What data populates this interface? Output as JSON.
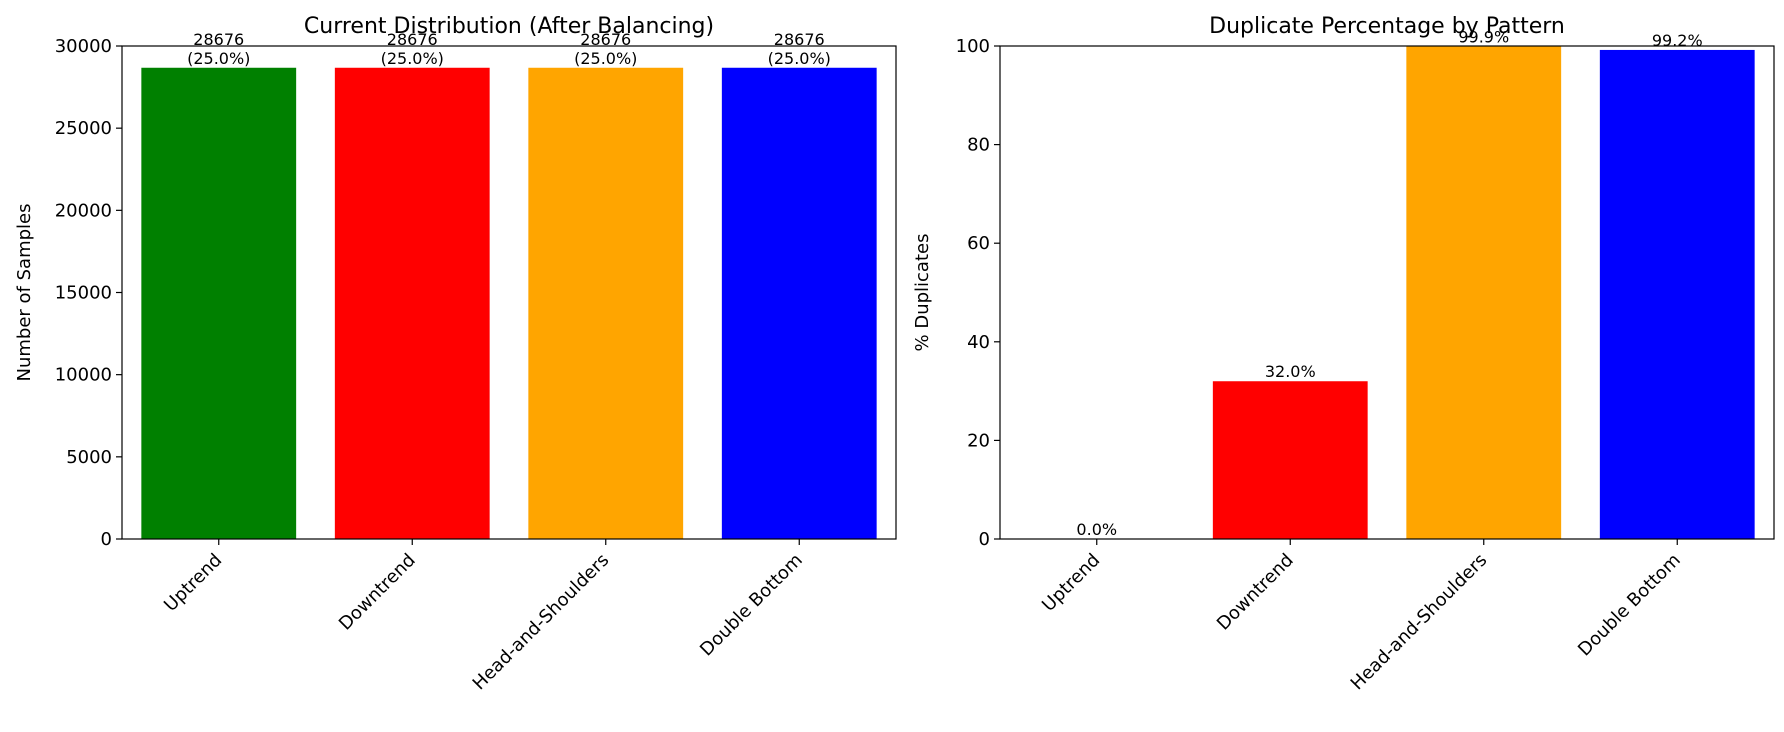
{
  "chart_data": [
    {
      "type": "bar",
      "title": "Current Distribution (After Balancing)",
      "xlabel": "",
      "ylabel": "Number of Samples",
      "categories": [
        "Uptrend",
        "Downtrend",
        "Head-and-Shoulders",
        "Double Bottom"
      ],
      "values": [
        28676,
        28676,
        28676,
        28676
      ],
      "bar_labels": [
        [
          "28676",
          "(25.0%)"
        ],
        [
          "28676",
          "(25.0%)"
        ],
        [
          "28676",
          "(25.0%)"
        ],
        [
          "28676",
          "(25.0%)"
        ]
      ],
      "colors": [
        "#008000",
        "#ff0000",
        "#ffa500",
        "#0000ff"
      ],
      "ylim": [
        0,
        30000
      ],
      "yticks": [
        0,
        5000,
        10000,
        15000,
        20000,
        25000,
        30000
      ],
      "grid": false
    },
    {
      "type": "bar",
      "title": "Duplicate Percentage by Pattern",
      "xlabel": "",
      "ylabel": "% Duplicates",
      "categories": [
        "Uptrend",
        "Downtrend",
        "Head-and-Shoulders",
        "Double Bottom"
      ],
      "values": [
        0.0,
        32.0,
        99.9,
        99.2
      ],
      "bar_labels": [
        [
          "0.0%"
        ],
        [
          "32.0%"
        ],
        [
          "99.9%"
        ],
        [
          "99.2%"
        ]
      ],
      "colors": [
        "#008000",
        "#ff0000",
        "#ffa500",
        "#0000ff"
      ],
      "ylim": [
        0,
        100
      ],
      "yticks": [
        0,
        20,
        40,
        60,
        80,
        100
      ],
      "grid": false
    }
  ]
}
